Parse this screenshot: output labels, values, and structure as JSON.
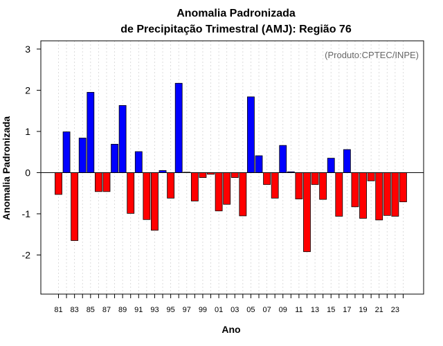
{
  "chart_data": {
    "type": "bar",
    "title": "Anomalia Padronizada",
    "subtitle": "de Precipitação Trimestral (AMJ): Região 76",
    "credit": "(Produto:CPTEC/INPE)",
    "xlabel": "Ano",
    "ylabel": "Anomalia Padronizada",
    "ylim": [
      -2.95,
      3.2
    ],
    "yticks": [
      "-2",
      "-1",
      "0",
      "1",
      "2",
      "3"
    ],
    "ytick_values": [
      -2,
      -1,
      0,
      1,
      2,
      3
    ],
    "xtick_labels": [
      "81",
      "83",
      "85",
      "87",
      "89",
      "91",
      "93",
      "95",
      "97",
      "99",
      "01",
      "03",
      "05",
      "07",
      "09",
      "11",
      "13",
      "15",
      "17",
      "19",
      "21",
      "23"
    ],
    "categories": [
      "1981",
      "1982",
      "1983",
      "1984",
      "1985",
      "1986",
      "1987",
      "1988",
      "1989",
      "1990",
      "1991",
      "1992",
      "1993",
      "1994",
      "1995",
      "1996",
      "1997",
      "1998",
      "1999",
      "2000",
      "2001",
      "2002",
      "2003",
      "2004",
      "2005",
      "2006",
      "2007",
      "2008",
      "2009",
      "2010",
      "2011",
      "2012",
      "2013",
      "2014",
      "2015",
      "2016",
      "2017",
      "2018",
      "2019",
      "2020",
      "2021",
      "2022",
      "2023",
      "2024"
    ],
    "values": [
      -0.53,
      0.99,
      -1.65,
      0.84,
      1.95,
      -0.46,
      -0.46,
      0.69,
      1.63,
      -0.99,
      0.51,
      -1.14,
      -1.4,
      0.05,
      -0.62,
      2.17,
      0.01,
      -0.69,
      -0.12,
      -0.04,
      -0.93,
      -0.77,
      -0.12,
      -1.05,
      1.84,
      0.41,
      -0.29,
      -0.62,
      0.66,
      0.02,
      -0.64,
      -1.92,
      -0.29,
      -0.65,
      0.35,
      -1.06,
      0.56,
      -0.83,
      -1.11,
      -0.2,
      -1.15,
      -1.04,
      -1.06,
      -0.71
    ],
    "positive_color": "#0000ff",
    "negative_color": "#ff0000",
    "grid": true
  }
}
